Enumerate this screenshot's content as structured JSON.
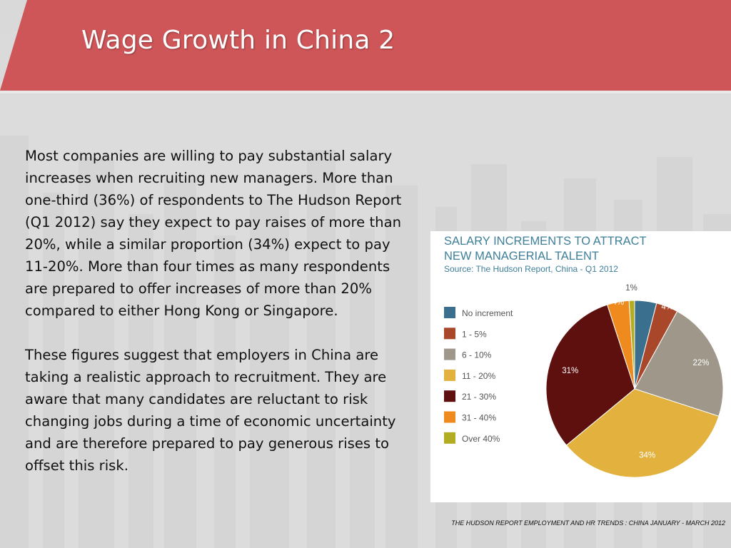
{
  "slide": {
    "title": "Wage Growth in China 2",
    "paragraphs": [
      "Most companies are willing to pay substantial salary increases when recruiting new managers. More than one-third (36%) of respondents to The Hudson Report (Q1 2012) say they expect to pay raises of more than 20%, while a similar proportion (34%) expect to pay 11-20%. More than four times as many respondents are prepared to offer increases of more than 20% compared to either Hong Kong or Singapore.",
      "These figures suggest that employers in China are taking a realistic approach to recruitment. They are aware that many candidates are reluctant to risk changing jobs during a time of economic uncertainty and are therefore prepared to pay generous rises to offset this risk."
    ],
    "footer": "THE HUDSON REPORT EMPLOYMENT AND HR TRENDS : CHINA JANUARY - MARCH 2012",
    "colors": {
      "title_bar": "#cf5658",
      "background": "#d9d9d9"
    }
  },
  "chart_data": {
    "type": "pie",
    "title_lines": [
      "SALARY INCREMENTS TO ATTRACT",
      "NEW MANAGERIAL TALENT"
    ],
    "subtitle": "Source: The Hudson Report, China - Q1 2012",
    "legend_position": "left",
    "slices": [
      {
        "name": "No increment",
        "value": 4,
        "label": "4%",
        "color": "#3a6f8e"
      },
      {
        "name": "1 - 5%",
        "value": 4,
        "label": "4%",
        "color": "#a8472a"
      },
      {
        "name": "6 - 10%",
        "value": 22,
        "label": "22%",
        "color": "#9e978a"
      },
      {
        "name": "11 - 20%",
        "value": 34,
        "label": "34%",
        "color": "#e2b13e"
      },
      {
        "name": "21 - 30%",
        "value": 31,
        "label": "31%",
        "color": "#5e100f"
      },
      {
        "name": "31 - 40%",
        "value": 4,
        "label": "4%",
        "color": "#ef8a1f"
      },
      {
        "name": "Over 40%",
        "value": 1,
        "label": "1%",
        "color": "#b2ac22"
      }
    ]
  }
}
